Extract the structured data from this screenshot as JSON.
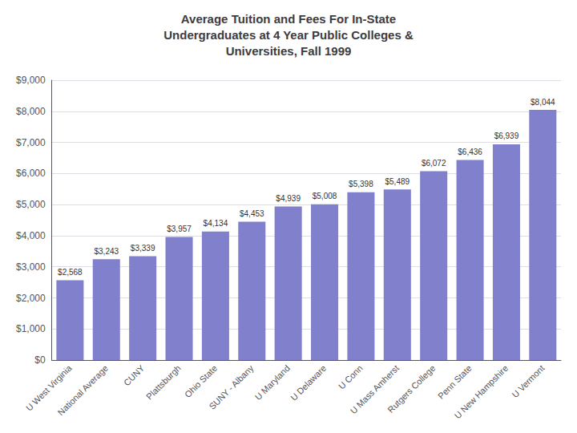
{
  "chart_data": {
    "type": "bar",
    "title": "Average Tuition and Fees For In-State\nUndergraduates at 4 Year Public Colleges &\nUniversities, Fall 1999",
    "categories": [
      "U West Virginia",
      "National Average",
      "CUNY",
      "Plattsburgh",
      "Ohio State",
      "SUNY - Albany",
      "U Maryland",
      "U Delaware",
      "U Conn",
      "U Mass Amherst",
      "Rutgers College",
      "Penn State",
      "U New Hampshire",
      "U Vermont"
    ],
    "values": [
      2568,
      3243,
      3339,
      3957,
      4134,
      4453,
      4939,
      5008,
      5398,
      5489,
      6072,
      6436,
      6939,
      8044
    ],
    "value_labels": [
      "$2,568",
      "$3,243",
      "$3,339",
      "$3,957",
      "$4,134",
      "$4,453",
      "$4,939",
      "$5,008",
      "$5,398",
      "$5,489",
      "$6,072",
      "$6,436",
      "$6,939",
      "$8,044"
    ],
    "data_labels": true,
    "color": "#8080cc",
    "ylim": [
      0,
      9000
    ],
    "yticks": [
      {
        "value": 0,
        "label": "$0"
      },
      {
        "value": 1000,
        "label": "$1,000"
      },
      {
        "value": 2000,
        "label": "$2,000"
      },
      {
        "value": 3000,
        "label": "$3,000"
      },
      {
        "value": 4000,
        "label": "$4,000"
      },
      {
        "value": 5000,
        "label": "$5,000"
      },
      {
        "value": 6000,
        "label": "$6,000"
      },
      {
        "value": 7000,
        "label": "$7,000"
      },
      {
        "value": 8000,
        "label": "$8,000"
      },
      {
        "value": 9000,
        "label": "$9,000"
      }
    ],
    "grid": true
  }
}
